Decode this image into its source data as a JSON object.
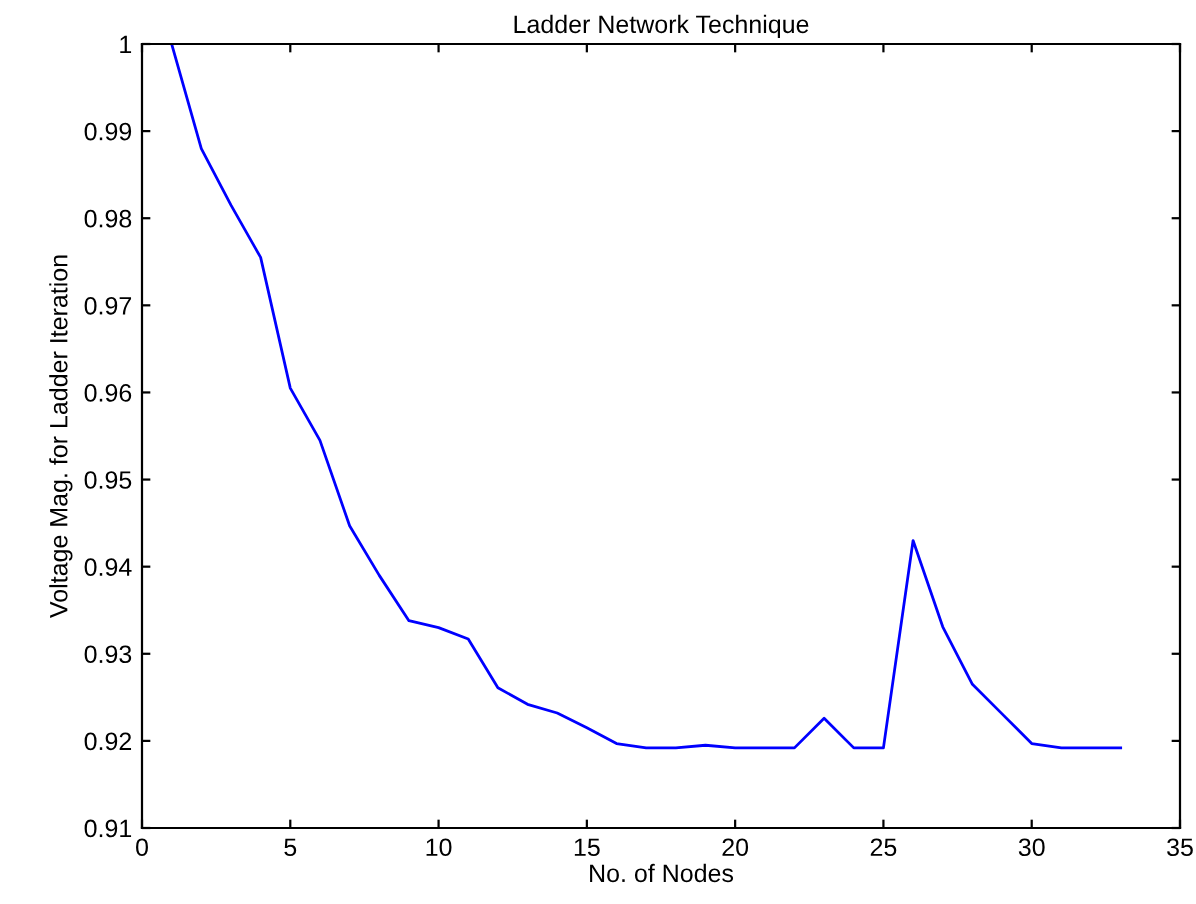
{
  "chart_data": {
    "type": "line",
    "title": "Ladder Network Technique",
    "xlabel": "No. of Nodes",
    "ylabel": "Voltage Mag. for Ladder Iteration",
    "x": [
      1,
      2,
      3,
      4,
      5,
      6,
      7,
      8,
      9,
      10,
      11,
      12,
      13,
      14,
      15,
      16,
      17,
      18,
      19,
      20,
      21,
      22,
      23,
      24,
      25,
      26,
      27,
      28,
      29,
      30,
      31,
      32,
      33
    ],
    "series": [
      {
        "color": "#0000ff",
        "values": [
          1.0,
          0.988,
          0.9815,
          0.9755,
          0.9605,
          0.9545,
          0.9447,
          0.939,
          0.9338,
          0.933,
          0.9317,
          0.9261,
          0.9242,
          0.9232,
          0.9215,
          0.9197,
          0.9192,
          0.9192,
          0.9195,
          0.9192,
          0.9192,
          0.9192,
          0.9226,
          0.9192,
          0.9192,
          0.943,
          0.9331,
          0.9265,
          0.9231,
          0.9197,
          0.9192,
          0.9192,
          0.9192
        ]
      }
    ],
    "xlim": [
      0,
      35
    ],
    "xticks": [
      0,
      5,
      10,
      15,
      20,
      25,
      30,
      35
    ],
    "ylim": [
      0.91,
      1
    ],
    "yticks": [
      0.91,
      0.92,
      0.93,
      0.94,
      0.95,
      0.96,
      0.97,
      0.98,
      0.99,
      1
    ],
    "grid": false,
    "legend": false,
    "marker": "none",
    "line_style": "solid"
  }
}
